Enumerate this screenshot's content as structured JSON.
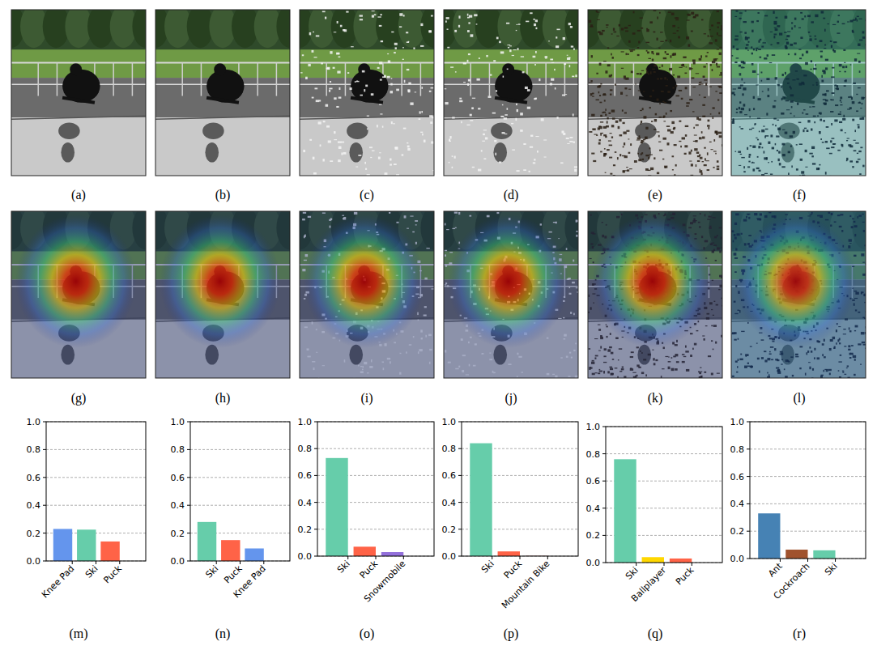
{
  "figure": {
    "images": [
      {
        "caption": "(a)"
      },
      {
        "caption": "(b)"
      },
      {
        "caption": "(c)"
      },
      {
        "caption": "(d)"
      },
      {
        "caption": "(e)"
      },
      {
        "caption": "(f)"
      },
      {
        "caption": "(g)"
      },
      {
        "caption": "(h)"
      },
      {
        "caption": "(i)"
      },
      {
        "caption": "(j)"
      },
      {
        "caption": "(k)"
      },
      {
        "caption": "(l)"
      }
    ]
  },
  "chart_data": [
    {
      "type": "bar",
      "title": "(m)",
      "categories": [
        "Knee Pad",
        "Ski",
        "Puck"
      ],
      "values": [
        0.23,
        0.225,
        0.14
      ],
      "colors": [
        "#6495ed",
        "#66cdaa",
        "#ff6347"
      ],
      "ylim": [
        0,
        1
      ],
      "yticks": [
        {
          "value": 0,
          "label": "0.0"
        },
        0.2,
        0.4,
        0.6,
        0.8,
        {
          "value": 1,
          "label": "1.0"
        }
      ],
      "grid": true
    },
    {
      "type": "bar",
      "title": "(n)",
      "categories": [
        "Ski",
        "Puck",
        "Knee Pad"
      ],
      "values": [
        0.28,
        0.15,
        0.09
      ],
      "colors": [
        "#66cdaa",
        "#ff6347",
        "#6495ed"
      ],
      "ylim": [
        0,
        1
      ],
      "yticks": [
        {
          "value": 0,
          "label": "0.0"
        },
        0.2,
        0.4,
        0.6,
        0.8,
        {
          "value": 1,
          "label": "1.0"
        }
      ],
      "grid": true
    },
    {
      "type": "bar",
      "title": "(o)",
      "categories": [
        "Ski",
        "Puck",
        "Snowmobile"
      ],
      "values": [
        0.73,
        0.07,
        0.03
      ],
      "colors": [
        "#66cdaa",
        "#ff6347",
        "#9370db"
      ],
      "ylim": [
        0,
        1
      ],
      "yticks": [
        {
          "value": 0,
          "label": "0.0"
        },
        0.2,
        0.4,
        0.6,
        0.8,
        {
          "value": 1,
          "label": "1.0"
        }
      ],
      "grid": true
    },
    {
      "type": "bar",
      "title": "(p)",
      "categories": [
        "Ski",
        "Puck",
        "Mountain Bike"
      ],
      "values": [
        0.84,
        0.035,
        0.003
      ],
      "colors": [
        "#66cdaa",
        "#ff6347",
        "#bc8f8f"
      ],
      "ylim": [
        0,
        1
      ],
      "yticks": [
        {
          "value": 0,
          "label": "0.0"
        },
        0.2,
        0.4,
        0.6,
        0.8,
        {
          "value": 1,
          "label": "1.0"
        }
      ],
      "grid": true
    },
    {
      "type": "bar",
      "title": "(q)",
      "categories": [
        "Ski",
        "Ballplayer",
        "Puck"
      ],
      "values": [
        0.76,
        0.04,
        0.03
      ],
      "colors": [
        "#66cdaa",
        "#ffd700",
        "#ff6347"
      ],
      "ylim": [
        0,
        1
      ],
      "yticks": [
        {
          "value": 0,
          "label": "0.0"
        },
        0.2,
        0.4,
        0.6,
        0.8,
        {
          "value": 1,
          "label": "1.0"
        }
      ],
      "grid": true
    },
    {
      "type": "bar",
      "title": "(r)",
      "categories": [
        "Ant",
        "Cockroach",
        "Ski"
      ],
      "values": [
        0.33,
        0.065,
        0.06
      ],
      "colors": [
        "#4682b4",
        "#a0522d",
        "#66cdaa"
      ],
      "ylim": [
        0,
        1
      ],
      "yticks": [
        {
          "value": 0,
          "label": "0.0"
        },
        0.2,
        0.4,
        0.6,
        0.8,
        {
          "value": 1,
          "label": "1.0"
        }
      ],
      "grid": true
    }
  ]
}
